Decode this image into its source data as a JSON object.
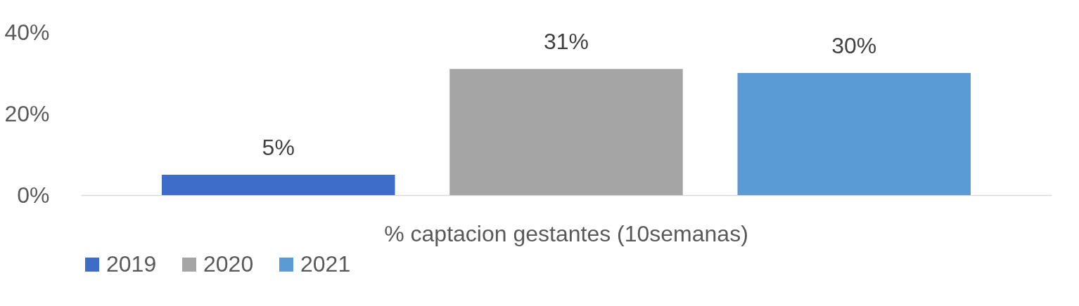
{
  "chart_data": {
    "type": "bar",
    "categories": [
      "% captacion gestantes (10semanas)"
    ],
    "series": [
      {
        "name": "2019",
        "color": "#3d6cc9",
        "values": [
          5
        ],
        "value_labels": [
          "5%"
        ]
      },
      {
        "name": "2020",
        "color": "#a5a5a5",
        "values": [
          31
        ],
        "value_labels": [
          "31%"
        ]
      },
      {
        "name": "2021",
        "color": "#5b9bd5",
        "values": [
          30
        ],
        "value_labels": [
          "30%"
        ]
      }
    ],
    "ylim": [
      0,
      40
    ],
    "yticks": [
      {
        "value": 0,
        "label": "0%"
      },
      {
        "value": 20,
        "label": "20%"
      },
      {
        "value": 40,
        "label": "40%"
      }
    ],
    "grid": false,
    "legend": "bottom"
  }
}
